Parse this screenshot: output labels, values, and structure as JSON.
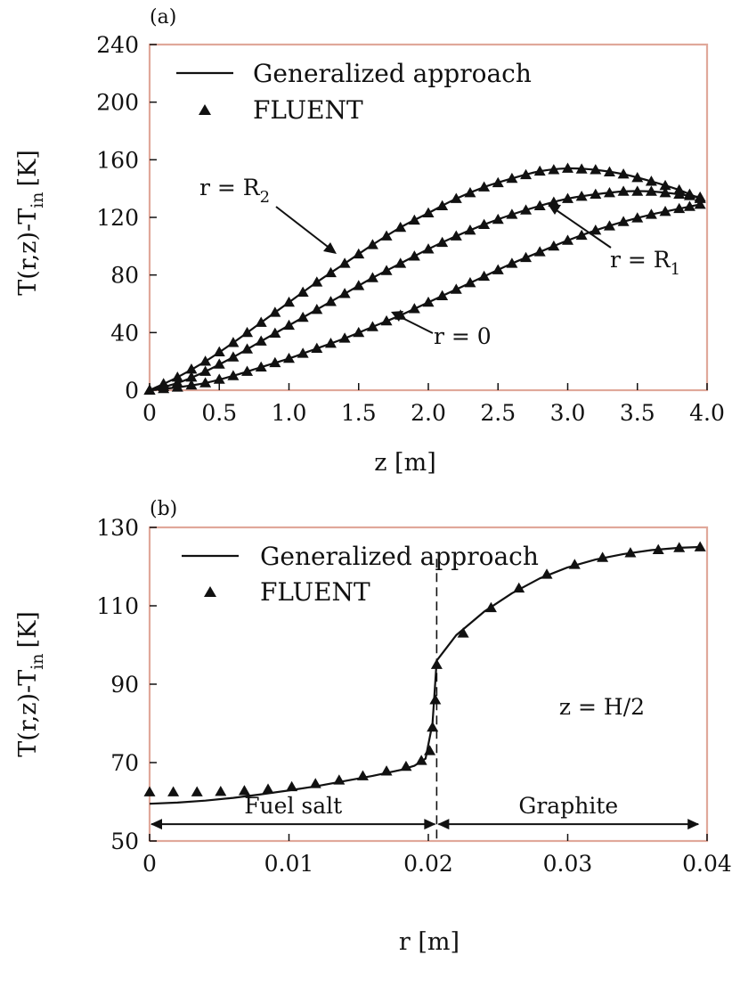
{
  "chart_data": [
    {
      "panel_label": "(a)",
      "type": "line",
      "xlabel": "z [m]",
      "ylabel_parts": {
        "main": "T(r,z)-T",
        "sub": "in",
        "unit": "[K]"
      },
      "xlim": [
        0,
        4.0
      ],
      "ylim": [
        0,
        240
      ],
      "xticks": [
        "0",
        "0.5",
        "1.0",
        "1.5",
        "2.0",
        "2.5",
        "3.0",
        "3.5",
        "4.0"
      ],
      "yticks": [
        "0",
        "40",
        "80",
        "120",
        "160",
        "200",
        "240"
      ],
      "legend": {
        "line_label": "Generalized approach",
        "marker_label": "FLUENT",
        "placement": "top-left"
      },
      "series": [
        {
          "name": "r = R2",
          "x": [
            0,
            0.2,
            0.4,
            0.6,
            0.8,
            1.0,
            1.2,
            1.4,
            1.6,
            1.8,
            2.0,
            2.2,
            2.4,
            2.6,
            2.8,
            3.0,
            3.2,
            3.4,
            3.6,
            3.8,
            3.95
          ],
          "y": [
            0,
            9,
            20,
            33,
            47,
            61,
            75,
            88,
            101,
            113,
            123,
            133,
            141,
            147,
            152,
            154,
            153,
            150,
            145,
            139,
            133
          ]
        },
        {
          "name": "r = R1",
          "x": [
            0,
            0.2,
            0.4,
            0.6,
            0.8,
            1.0,
            1.2,
            1.4,
            1.6,
            1.8,
            2.0,
            2.2,
            2.4,
            2.6,
            2.8,
            3.0,
            3.2,
            3.4,
            3.6,
            3.8,
            3.95
          ],
          "y": [
            0,
            5,
            13,
            23,
            34,
            45,
            56,
            67,
            78,
            88,
            98,
            107,
            115,
            122,
            128,
            133,
            136,
            138,
            138,
            136,
            134
          ]
        },
        {
          "name": "r = 0",
          "x": [
            0,
            0.2,
            0.4,
            0.6,
            0.8,
            1.0,
            1.2,
            1.4,
            1.6,
            1.8,
            2.0,
            2.2,
            2.4,
            2.6,
            2.8,
            3.0,
            3.2,
            3.4,
            3.6,
            3.8,
            3.95
          ],
          "y": [
            0,
            2,
            5,
            10,
            16,
            22,
            29,
            36,
            44,
            52,
            61,
            70,
            79,
            88,
            96,
            104,
            111,
            117,
            122,
            126,
            129
          ]
        }
      ],
      "annotations": [
        {
          "text": "r = R",
          "sub": "2",
          "target_series": "r = R2"
        },
        {
          "text": "r = R",
          "sub": "1",
          "target_series": "r = R1"
        },
        {
          "text": "r = 0",
          "sub": "",
          "target_series": "r = 0"
        }
      ]
    },
    {
      "panel_label": "(b)",
      "type": "line",
      "xlabel": "r [m]",
      "ylabel_parts": {
        "main": "T(r,z)-T",
        "sub": "in",
        "unit": "[K]"
      },
      "xlim": [
        0,
        0.04
      ],
      "ylim": [
        50,
        130
      ],
      "xticks": [
        "0",
        "0.01",
        "0.02",
        "0.03",
        "0.04"
      ],
      "yticks": [
        "50",
        "70",
        "90",
        "110",
        "130"
      ],
      "legend": {
        "line_label": "Generalized approach",
        "marker_label": "FLUENT",
        "placement": "top-left"
      },
      "interface_r": 0.0206,
      "regions": [
        {
          "label": "Fuel salt",
          "from": 0,
          "to": 0.0206
        },
        {
          "label": "Graphite",
          "from": 0.0206,
          "to": 0.0395
        }
      ],
      "annotation": "z = H/2",
      "series": [
        {
          "name": "Generalized approach",
          "x": [
            0,
            0.002,
            0.004,
            0.006,
            0.008,
            0.01,
            0.012,
            0.014,
            0.016,
            0.018,
            0.019,
            0.0198,
            0.0203,
            0.0206,
            0.022,
            0.024,
            0.026,
            0.028,
            0.03,
            0.032,
            0.034,
            0.036,
            0.038,
            0.0395
          ],
          "y": [
            59.5,
            59.8,
            60.3,
            61.0,
            61.9,
            62.9,
            64.0,
            65.3,
            66.6,
            68.1,
            69.2,
            71.0,
            80.0,
            96.0,
            102.5,
            108.5,
            113.2,
            117.0,
            119.8,
            121.8,
            123.2,
            124.2,
            124.8,
            125.0
          ]
        },
        {
          "name": "FLUENT",
          "x": [
            0,
            0.0017,
            0.0034,
            0.0051,
            0.0068,
            0.0085,
            0.0102,
            0.0119,
            0.0136,
            0.0153,
            0.017,
            0.0184,
            0.0195,
            0.0201,
            0.0203,
            0.0205,
            0.0206,
            0.0225,
            0.0245,
            0.0265,
            0.0285,
            0.0305,
            0.0325,
            0.0345,
            0.0365,
            0.038,
            0.0395
          ],
          "y": [
            62.5,
            62.5,
            62.5,
            62.6,
            62.8,
            63.2,
            63.8,
            64.6,
            65.5,
            66.6,
            67.8,
            69.0,
            70.5,
            73.0,
            79.0,
            86.0,
            95.0,
            103.0,
            109.5,
            114.5,
            118.0,
            120.5,
            122.3,
            123.5,
            124.3,
            124.8,
            125.0
          ]
        }
      ]
    }
  ]
}
